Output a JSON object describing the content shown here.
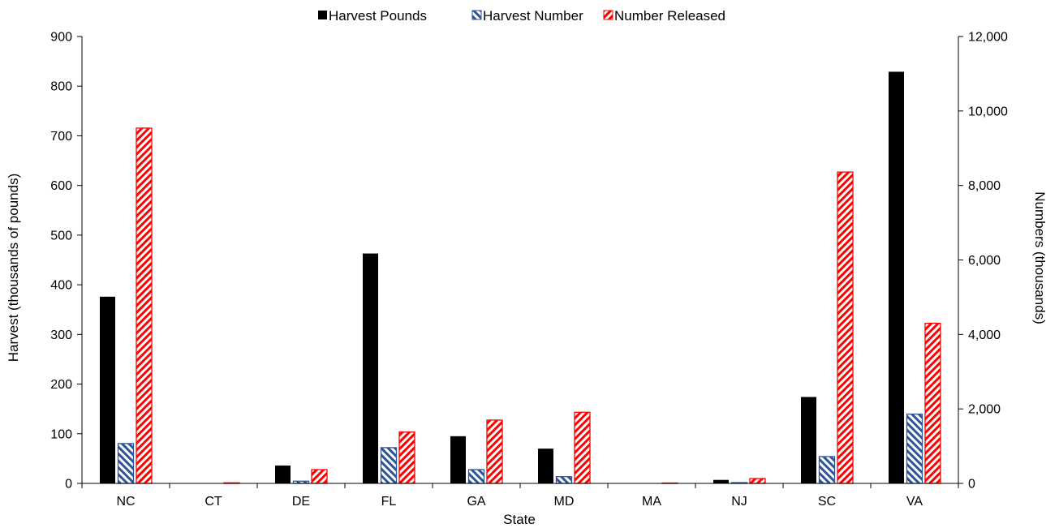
{
  "chart_data": {
    "type": "bar",
    "categories": [
      "NC",
      "CT",
      "DE",
      "FL",
      "GA",
      "MD",
      "MA",
      "NJ",
      "SC",
      "VA"
    ],
    "xlabel": "State",
    "ylabel_left": "Harvest (thousands of pounds)",
    "ylabel_right": "Numbers (thousands)",
    "ylim_left": [
      0,
      900
    ],
    "ylim_right": [
      0,
      12000
    ],
    "yticks_left": [
      "0",
      "100",
      "200",
      "300",
      "400",
      "500",
      "600",
      "700",
      "800",
      "900"
    ],
    "yticks_right": [
      "0",
      "2,000",
      "4,000",
      "6,000",
      "8,000",
      "10,000",
      "12,000"
    ],
    "grid": false,
    "legend_position": "top-center",
    "series": [
      {
        "name": "Harvest Pounds",
        "axis": "left",
        "color": "#000000",
        "pattern": "solid",
        "values": [
          376,
          0,
          36,
          463,
          95,
          70,
          0,
          7,
          174,
          829
        ]
      },
      {
        "name": "Harvest Number",
        "axis": "right",
        "color": "#2f5597",
        "pattern": "hatch",
        "values": [
          1070,
          0,
          60,
          960,
          370,
          180,
          0,
          20,
          720,
          1860
        ]
      },
      {
        "name": "Number Released",
        "axis": "right",
        "color": "#ff0000",
        "pattern": "hatch",
        "values": [
          9540,
          15,
          370,
          1380,
          1700,
          1910,
          10,
          130,
          8360,
          4300
        ]
      }
    ]
  }
}
